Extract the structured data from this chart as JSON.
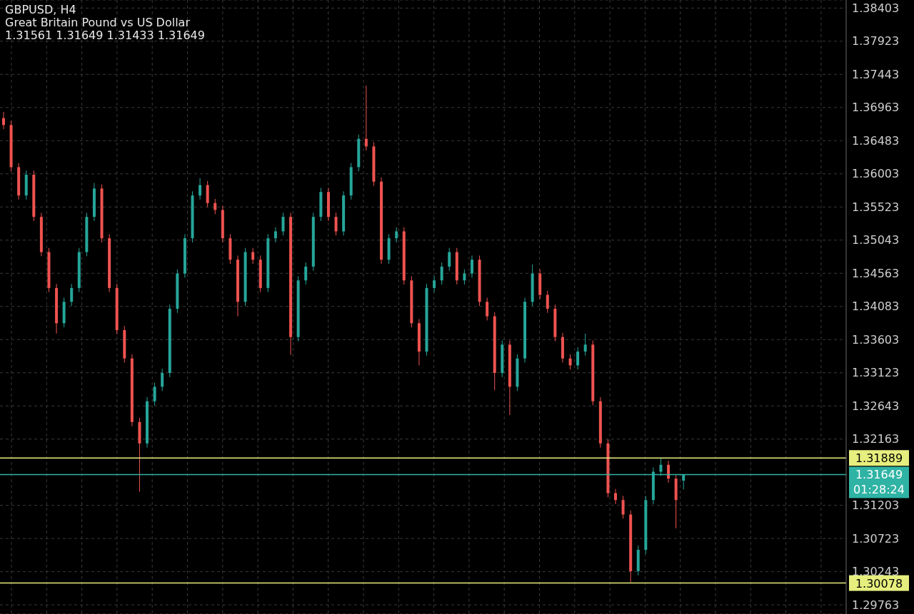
{
  "chart_data": {
    "type": "candlestick",
    "title": "GBPUSD, H4",
    "subtitle": "Great Britain Pound vs US Dollar",
    "annotations": [
      "1.31561 1.31649 1.31433 1.31649",
      "01:28:24"
    ],
    "categories": [
      null,
      null,
      null,
      null,
      null,
      null,
      null,
      null,
      null,
      null,
      null,
      null,
      null,
      null,
      null,
      null,
      null,
      null,
      null,
      null,
      null,
      null,
      null,
      null,
      null,
      null,
      null,
      null,
      null,
      null,
      null,
      null,
      null,
      null,
      null,
      null,
      null,
      null,
      null,
      null,
      null,
      null,
      null,
      null,
      null,
      null,
      null,
      null,
      null,
      null,
      null,
      null,
      null,
      null,
      null,
      null,
      null,
      null,
      null,
      null,
      null,
      null,
      null,
      null,
      null,
      null,
      null,
      null,
      null,
      null,
      null,
      null,
      null,
      null,
      null,
      null,
      null,
      null,
      null,
      null,
      null,
      null,
      null,
      null,
      null,
      null,
      null,
      null,
      null,
      null,
      null,
      null,
      null,
      null,
      null,
      null,
      null,
      null,
      null,
      null,
      null,
      null,
      null,
      null,
      null,
      null,
      null,
      null,
      null,
      null,
      null,
      null
    ],
    "ohlc": [
      [
        1.3681,
        1.369,
        1.3665,
        1.3671
      ],
      [
        1.3671,
        1.3677,
        1.3604,
        1.361
      ],
      [
        1.361,
        1.3616,
        1.3563,
        1.3569
      ],
      [
        1.3569,
        1.3605,
        1.3563,
        1.3599
      ],
      [
        1.3599,
        1.3605,
        1.3532,
        1.3538
      ],
      [
        1.3538,
        1.3544,
        1.3481,
        1.3487
      ],
      [
        1.3487,
        1.3493,
        1.3429,
        1.3435
      ],
      [
        1.3435,
        1.3441,
        1.3369,
        1.3384
      ],
      [
        1.3384,
        1.3421,
        1.3378,
        1.3415
      ],
      [
        1.3415,
        1.3441,
        1.3409,
        1.3435
      ],
      [
        1.3435,
        1.3493,
        1.3429,
        1.3487
      ],
      [
        1.3487,
        1.3544,
        1.3481,
        1.3538
      ],
      [
        1.3538,
        1.3587,
        1.3532,
        1.3579
      ],
      [
        1.3579,
        1.3585,
        1.3501,
        1.3507
      ],
      [
        1.3507,
        1.3513,
        1.3429,
        1.3435
      ],
      [
        1.3435,
        1.3441,
        1.3368,
        1.3374
      ],
      [
        1.3374,
        1.338,
        1.3327,
        1.3333
      ],
      [
        1.3333,
        1.3339,
        1.3235,
        1.3241
      ],
      [
        1.3241,
        1.3247,
        1.314,
        1.321
      ],
      [
        1.321,
        1.3277,
        1.3204,
        1.3271
      ],
      [
        1.3271,
        1.3298,
        1.3265,
        1.3292
      ],
      [
        1.3292,
        1.3318,
        1.3286,
        1.3312
      ],
      [
        1.3312,
        1.3411,
        1.3306,
        1.3405
      ],
      [
        1.3405,
        1.3462,
        1.3399,
        1.3456
      ],
      [
        1.3456,
        1.3513,
        1.345,
        1.3507
      ],
      [
        1.3507,
        1.3575,
        1.3501,
        1.3569
      ],
      [
        1.3569,
        1.3594,
        1.3563,
        1.3584
      ],
      [
        1.3584,
        1.359,
        1.3552,
        1.3558
      ],
      [
        1.3558,
        1.3564,
        1.3542,
        1.3548
      ],
      [
        1.3548,
        1.3554,
        1.3501,
        1.3507
      ],
      [
        1.3507,
        1.3513,
        1.347,
        1.3476
      ],
      [
        1.3476,
        1.3482,
        1.3394,
        1.3415
      ],
      [
        1.3415,
        1.3493,
        1.3409,
        1.3487
      ],
      [
        1.3487,
        1.3493,
        1.347,
        1.3476
      ],
      [
        1.3476,
        1.3482,
        1.3429,
        1.3435
      ],
      [
        1.3435,
        1.3513,
        1.3429,
        1.3507
      ],
      [
        1.3507,
        1.3523,
        1.3501,
        1.3517
      ],
      [
        1.3517,
        1.3544,
        1.3511,
        1.3538
      ],
      [
        1.3538,
        1.3544,
        1.3338,
        1.3364
      ],
      [
        1.3364,
        1.3452,
        1.3358,
        1.3446
      ],
      [
        1.3446,
        1.3472,
        1.344,
        1.3466
      ],
      [
        1.3466,
        1.3544,
        1.346,
        1.3538
      ],
      [
        1.3538,
        1.358,
        1.3532,
        1.3574
      ],
      [
        1.3574,
        1.358,
        1.3532,
        1.3538
      ],
      [
        1.3538,
        1.3544,
        1.3511,
        1.3517
      ],
      [
        1.3517,
        1.3575,
        1.3511,
        1.3569
      ],
      [
        1.3569,
        1.3616,
        1.3563,
        1.361
      ],
      [
        1.361,
        1.3657,
        1.3604,
        1.3651
      ],
      [
        1.3651,
        1.3728,
        1.3634,
        1.364
      ],
      [
        1.364,
        1.3646,
        1.3583,
        1.3589
      ],
      [
        1.3589,
        1.3595,
        1.347,
        1.3476
      ],
      [
        1.3476,
        1.3513,
        1.347,
        1.3507
      ],
      [
        1.3507,
        1.3523,
        1.3501,
        1.3517
      ],
      [
        1.3517,
        1.3523,
        1.344,
        1.3446
      ],
      [
        1.3446,
        1.3452,
        1.3378,
        1.3384
      ],
      [
        1.3384,
        1.339,
        1.3323,
        1.3343
      ],
      [
        1.3343,
        1.3441,
        1.3337,
        1.3435
      ],
      [
        1.3435,
        1.3452,
        1.3429,
        1.3446
      ],
      [
        1.3446,
        1.3472,
        1.344,
        1.3466
      ],
      [
        1.3466,
        1.3493,
        1.346,
        1.3487
      ],
      [
        1.3487,
        1.3493,
        1.344,
        1.3446
      ],
      [
        1.3446,
        1.3462,
        1.344,
        1.3456
      ],
      [
        1.3456,
        1.3482,
        1.345,
        1.3476
      ],
      [
        1.3476,
        1.3482,
        1.3409,
        1.3415
      ],
      [
        1.3415,
        1.3421,
        1.3388,
        1.3394
      ],
      [
        1.3394,
        1.34,
        1.3287,
        1.3312
      ],
      [
        1.3312,
        1.3359,
        1.3306,
        1.3353
      ],
      [
        1.3353,
        1.3359,
        1.3251,
        1.3292
      ],
      [
        1.3292,
        1.3339,
        1.3286,
        1.3333
      ],
      [
        1.3333,
        1.3421,
        1.3327,
        1.3415
      ],
      [
        1.3415,
        1.3469,
        1.3409,
        1.3456
      ],
      [
        1.3456,
        1.3462,
        1.3419,
        1.3425
      ],
      [
        1.3425,
        1.3431,
        1.3399,
        1.3405
      ],
      [
        1.3405,
        1.3411,
        1.3358,
        1.3364
      ],
      [
        1.3364,
        1.337,
        1.3327,
        1.3333
      ],
      [
        1.3333,
        1.3339,
        1.3317,
        1.3323
      ],
      [
        1.3323,
        1.3349,
        1.3317,
        1.3343
      ],
      [
        1.3343,
        1.3369,
        1.3337,
        1.3353
      ],
      [
        1.3353,
        1.3359,
        1.3265,
        1.3271
      ],
      [
        1.3271,
        1.3277,
        1.3204,
        1.321
      ],
      [
        1.321,
        1.3216,
        1.3132,
        1.3138
      ],
      [
        1.3138,
        1.3144,
        1.3122,
        1.3128
      ],
      [
        1.3128,
        1.3134,
        1.3101,
        1.3107
      ],
      [
        1.3107,
        1.3113,
        1.3009,
        1.3025
      ],
      [
        1.3025,
        1.3062,
        1.3019,
        1.3056
      ],
      [
        1.3056,
        1.3134,
        1.305,
        1.3128
      ],
      [
        1.3128,
        1.3175,
        1.3122,
        1.3169
      ],
      [
        1.3169,
        1.3188,
        1.3163,
        1.3179
      ],
      [
        1.3179,
        1.3185,
        1.3153,
        1.3159
      ],
      [
        1.3159,
        1.3165,
        1.3087,
        1.3128
      ],
      [
        1.31561,
        1.31649,
        1.31433,
        1.31649
      ],
      null,
      null,
      null,
      null,
      null,
      null,
      null,
      null,
      null,
      null,
      null,
      null,
      null,
      null,
      null,
      null,
      null,
      null,
      null,
      null,
      null
    ],
    "colors": [
      "#ef5350",
      "#ef5350",
      "#ef5350",
      "#26a69a",
      "#ef5350",
      "#ef5350",
      "#ef5350",
      "#ef5350",
      "#26a69a",
      "#26a69a",
      "#26a69a",
      "#26a69a",
      "#26a69a",
      "#ef5350",
      "#ef5350",
      "#ef5350",
      "#ef5350",
      "#ef5350",
      "#ef5350",
      "#26a69a",
      "#26a69a",
      "#26a69a",
      "#26a69a",
      "#26a69a",
      "#26a69a",
      "#26a69a",
      "#26a69a",
      "#ef5350",
      "#ef5350",
      "#ef5350",
      "#ef5350",
      "#ef5350",
      "#26a69a",
      "#ef5350",
      "#ef5350",
      "#26a69a",
      "#26a69a",
      "#26a69a",
      "#ef5350",
      "#26a69a",
      "#26a69a",
      "#26a69a",
      "#26a69a",
      "#ef5350",
      "#ef5350",
      "#26a69a",
      "#26a69a",
      "#26a69a",
      "#ef5350",
      "#ef5350",
      "#ef5350",
      "#26a69a",
      "#26a69a",
      "#ef5350",
      "#ef5350",
      "#ef5350",
      "#26a69a",
      "#26a69a",
      "#26a69a",
      "#26a69a",
      "#ef5350",
      "#26a69a",
      "#26a69a",
      "#ef5350",
      "#ef5350",
      "#ef5350",
      "#26a69a",
      "#ef5350",
      "#26a69a",
      "#26a69a",
      "#26a69a",
      "#ef5350",
      "#ef5350",
      "#ef5350",
      "#ef5350",
      "#ef5350",
      "#26a69a",
      "#26a69a",
      "#ef5350",
      "#ef5350",
      "#ef5350",
      "#ef5350",
      "#ef5350",
      "#ef5350",
      "#26a69a",
      "#26a69a",
      "#26a69a",
      "#26a69a",
      "#ef5350",
      "#ef5350",
      "#26a69a",
      null,
      null,
      null,
      null,
      null,
      null,
      null,
      null,
      null,
      null,
      null,
      null,
      null,
      null,
      null,
      null,
      null,
      null,
      null,
      null,
      null
    ],
    "ylim": [
      1.2963,
      1.3852
    ],
    "yticks": [
      1.29763,
      1.30243,
      1.30723,
      1.31203,
      1.32163,
      1.32643,
      1.33123,
      1.33603,
      1.34083,
      1.34563,
      1.35043,
      1.35523,
      1.36003,
      1.36483,
      1.36963,
      1.37443,
      1.37923,
      1.38403
    ],
    "tick_labels": "y",
    "grid": true,
    "ref_lines": [
      {
        "axis": "y",
        "value": 1.31889,
        "label": "1.31889",
        "color": "#e6ee7e"
      },
      {
        "axis": "y",
        "value": 1.30078,
        "label": "1.30078",
        "color": "#e6ee7e"
      },
      {
        "axis": "y",
        "value": 1.31649,
        "label": "1.31649",
        "color": "#2fb3a4"
      }
    ]
  }
}
